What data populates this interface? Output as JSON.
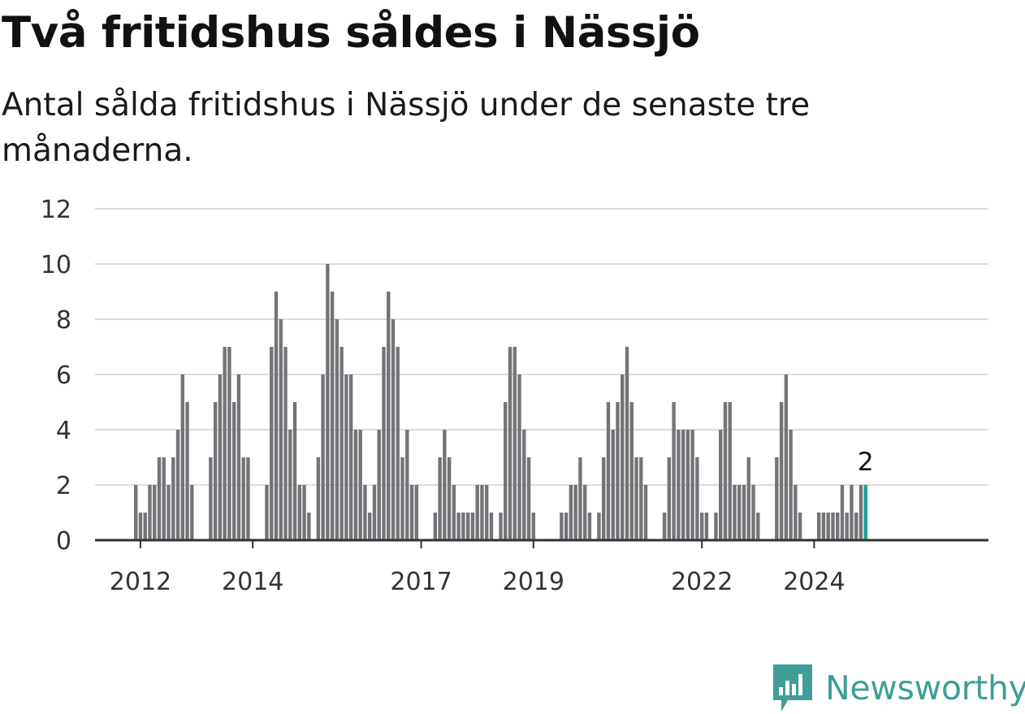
{
  "title": "Två fritidshus såldes i Nässjö",
  "subtitle": "Antal sålda fritidshus i Nässjö under de senaste tre månaderna.",
  "brand": {
    "name": "Newsworthy",
    "icon": "newsworthy-logo-icon"
  },
  "colors": {
    "bar": "#767378",
    "highlight": "#1d9e92",
    "grid": "#dcdcdc",
    "axis": "#333333",
    "brand": "#3f9e97"
  },
  "chart_data": {
    "type": "bar",
    "title": "Två fritidshus såldes i Nässjö",
    "xlabel": "",
    "ylabel": "",
    "ylim": [
      0,
      12
    ],
    "yticks": [
      0,
      2,
      4,
      6,
      8,
      10,
      12
    ],
    "xticks": [
      "2012",
      "2014",
      "2017",
      "2019",
      "2022",
      "2024"
    ],
    "grid": true,
    "frequency": "monthly",
    "start": "2011-12",
    "end": "2024-12",
    "values": [
      2,
      1,
      1,
      2,
      2,
      3,
      3,
      2,
      3,
      4,
      6,
      5,
      2,
      null,
      null,
      null,
      3,
      5,
      6,
      7,
      7,
      5,
      6,
      3,
      3,
      null,
      null,
      null,
      2,
      7,
      9,
      8,
      7,
      4,
      5,
      2,
      2,
      1,
      null,
      3,
      6,
      10,
      9,
      8,
      7,
      6,
      6,
      4,
      4,
      2,
      1,
      2,
      4,
      7,
      9,
      8,
      7,
      3,
      4,
      2,
      2,
      null,
      null,
      null,
      1,
      3,
      4,
      3,
      2,
      1,
      1,
      1,
      1,
      2,
      2,
      2,
      1,
      null,
      1,
      5,
      7,
      7,
      6,
      4,
      3,
      1,
      null,
      null,
      null,
      null,
      null,
      1,
      1,
      2,
      2,
      3,
      2,
      1,
      null,
      1,
      3,
      5,
      4,
      5,
      6,
      7,
      5,
      3,
      3,
      2,
      null,
      null,
      null,
      1,
      3,
      5,
      4,
      4,
      4,
      4,
      3,
      1,
      1,
      null,
      1,
      4,
      5,
      5,
      2,
      2,
      2,
      3,
      2,
      1,
      null,
      null,
      null,
      3,
      5,
      6,
      4,
      2,
      1,
      null,
      null,
      null,
      1,
      1,
      1,
      1,
      1,
      2,
      1,
      2,
      1,
      2,
      2
    ],
    "annotation": {
      "label": "2",
      "value": 2,
      "period": "2024-12"
    }
  }
}
